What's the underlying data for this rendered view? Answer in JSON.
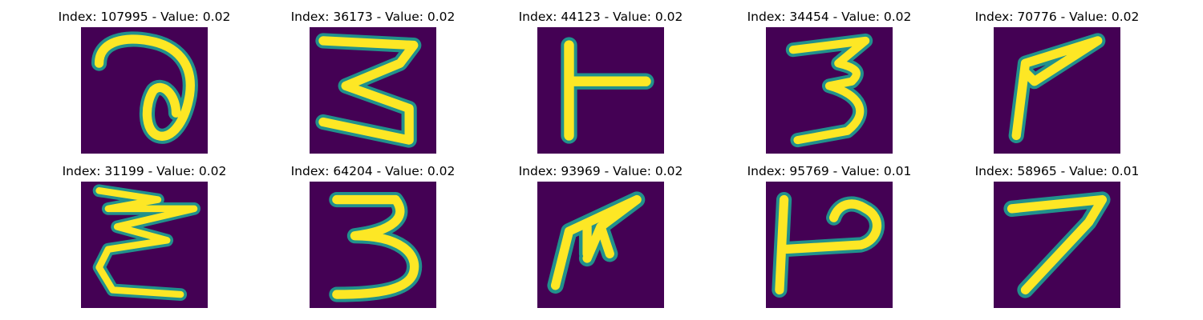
{
  "colors": {
    "background": "#440154",
    "mid": "#21918c",
    "stroke": "#fde725"
  },
  "panels": [
    {
      "title": "Index: 107995 - Value: 0.02",
      "digit_icon": "curly-loop-glyph"
    },
    {
      "title": "Index: 36173 - Value: 0.02",
      "digit_icon": "three-glyph"
    },
    {
      "title": "Index: 44123 - Value: 0.02",
      "digit_icon": "t-shape-glyph"
    },
    {
      "title": "Index: 34454 - Value: 0.02",
      "digit_icon": "three-glyph"
    },
    {
      "title": "Index: 70776 - Value: 0.02",
      "digit_icon": "angle-glyph"
    },
    {
      "title": "Index: 31199 - Value: 0.02",
      "digit_icon": "zigzag-glyph"
    },
    {
      "title": "Index: 64204 - Value: 0.02",
      "digit_icon": "three-glyph"
    },
    {
      "title": "Index: 93969 - Value: 0.02",
      "digit_icon": "branch-glyph"
    },
    {
      "title": "Index: 95769 - Value: 0.01",
      "digit_icon": "hook-glyph"
    },
    {
      "title": "Index: 58965 - Value: 0.01",
      "digit_icon": "seven-glyph"
    }
  ]
}
